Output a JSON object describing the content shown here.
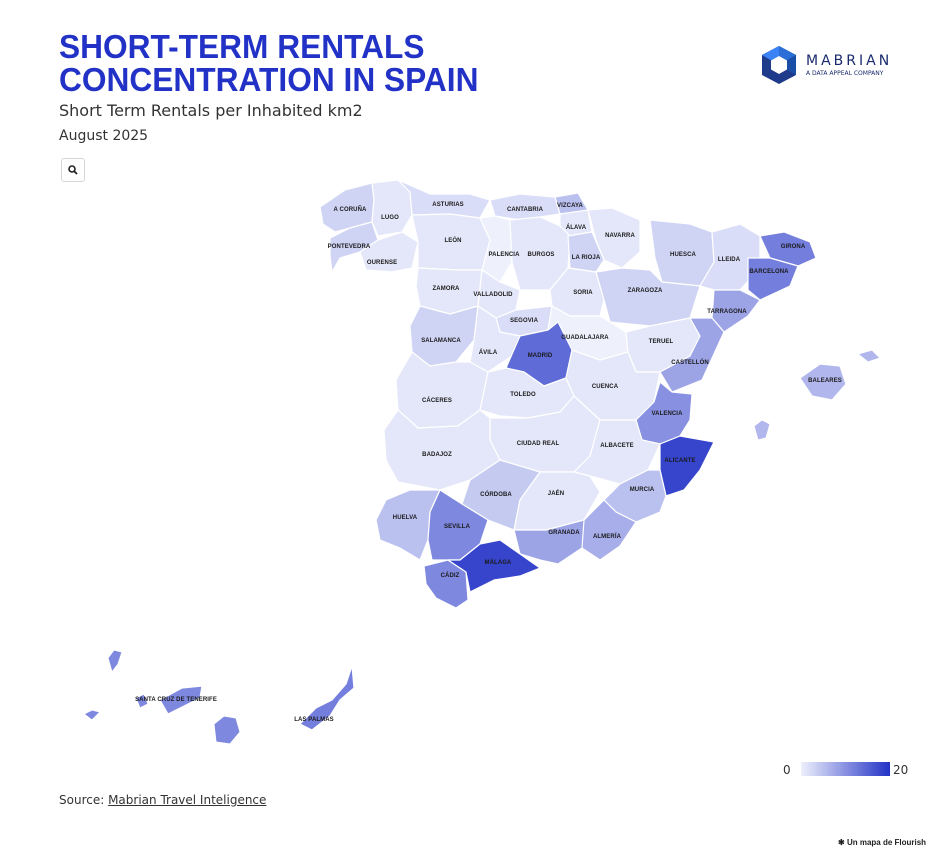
{
  "header": {
    "title_line1": "SHORT-TERM RENTALS",
    "title_line2": "CONCENTRATION IN SPAIN",
    "subtitle": "Short Term Rentals per Inhabited km2",
    "date": "August 2025"
  },
  "logo": {
    "name": "MABRIAN",
    "tagline": "A DATA APPEAL COMPANY"
  },
  "legend": {
    "min": "0",
    "max": "20",
    "color_low": "#eef0fc",
    "color_high": "#2232c6"
  },
  "source": {
    "prefix": "Source: ",
    "link": "Mabrian Travel Inteligence"
  },
  "footer": {
    "flourish": "Un mapa de Flourish"
  },
  "map": {
    "regions": [
      {
        "name": "A CORUÑA",
        "value": 3
      },
      {
        "name": "LUGO",
        "value": 1
      },
      {
        "name": "PONTEVEDRA",
        "value": 3
      },
      {
        "name": "OURENSE",
        "value": 1
      },
      {
        "name": "ASTURIAS",
        "value": 2
      },
      {
        "name": "CANTABRIA",
        "value": 2
      },
      {
        "name": "VIZCAYA",
        "value": 5
      },
      {
        "name": "ÁLAVA",
        "value": 1
      },
      {
        "name": "NAVARRA",
        "value": 1
      },
      {
        "name": "LEÓN",
        "value": 1
      },
      {
        "name": "PALENCIA",
        "value": 0
      },
      {
        "name": "BURGOS",
        "value": 1
      },
      {
        "name": "LA RIOJA",
        "value": 3
      },
      {
        "name": "HUESCA",
        "value": 3
      },
      {
        "name": "LLEIDA",
        "value": 2
      },
      {
        "name": "GIRONA",
        "value": 12
      },
      {
        "name": "BARCELONA",
        "value": 12
      },
      {
        "name": "ZAMORA",
        "value": 1
      },
      {
        "name": "VALLADOLID",
        "value": 1
      },
      {
        "name": "SORIA",
        "value": 1
      },
      {
        "name": "ZARAGOZA",
        "value": 3
      },
      {
        "name": "TARRAGONA",
        "value": 8
      },
      {
        "name": "SEGOVIA",
        "value": 2
      },
      {
        "name": "GUADALAJARA",
        "value": 0
      },
      {
        "name": "SALAMANCA",
        "value": 3
      },
      {
        "name": "ÁVILA",
        "value": 1
      },
      {
        "name": "MADRID",
        "value": 14
      },
      {
        "name": "TERUEL",
        "value": 1
      },
      {
        "name": "CASTELLÓN",
        "value": 8
      },
      {
        "name": "BALEARES",
        "value": 6
      },
      {
        "name": "CÁCERES",
        "value": 1
      },
      {
        "name": "TOLEDO",
        "value": 1
      },
      {
        "name": "CUENCA",
        "value": 1
      },
      {
        "name": "VALENCIA",
        "value": 10
      },
      {
        "name": "CIUDAD REAL",
        "value": 1
      },
      {
        "name": "ALBACETE",
        "value": 1
      },
      {
        "name": "ALICANTE",
        "value": 18
      },
      {
        "name": "BADAJOZ",
        "value": 1
      },
      {
        "name": "CÓRDOBA",
        "value": 4
      },
      {
        "name": "JAÉN",
        "value": 1
      },
      {
        "name": "MURCIA",
        "value": 5
      },
      {
        "name": "HUELVA",
        "value": 5
      },
      {
        "name": "SEVILLA",
        "value": 11
      },
      {
        "name": "GRANADA",
        "value": 8
      },
      {
        "name": "ALMERÍA",
        "value": 7
      },
      {
        "name": "CÁDIZ",
        "value": 11
      },
      {
        "name": "MÁLAGA",
        "value": 18
      },
      {
        "name": "SANTA CRUZ DE TENERIFE",
        "value": 11
      },
      {
        "name": "LAS PALMAS",
        "value": 12
      }
    ]
  }
}
